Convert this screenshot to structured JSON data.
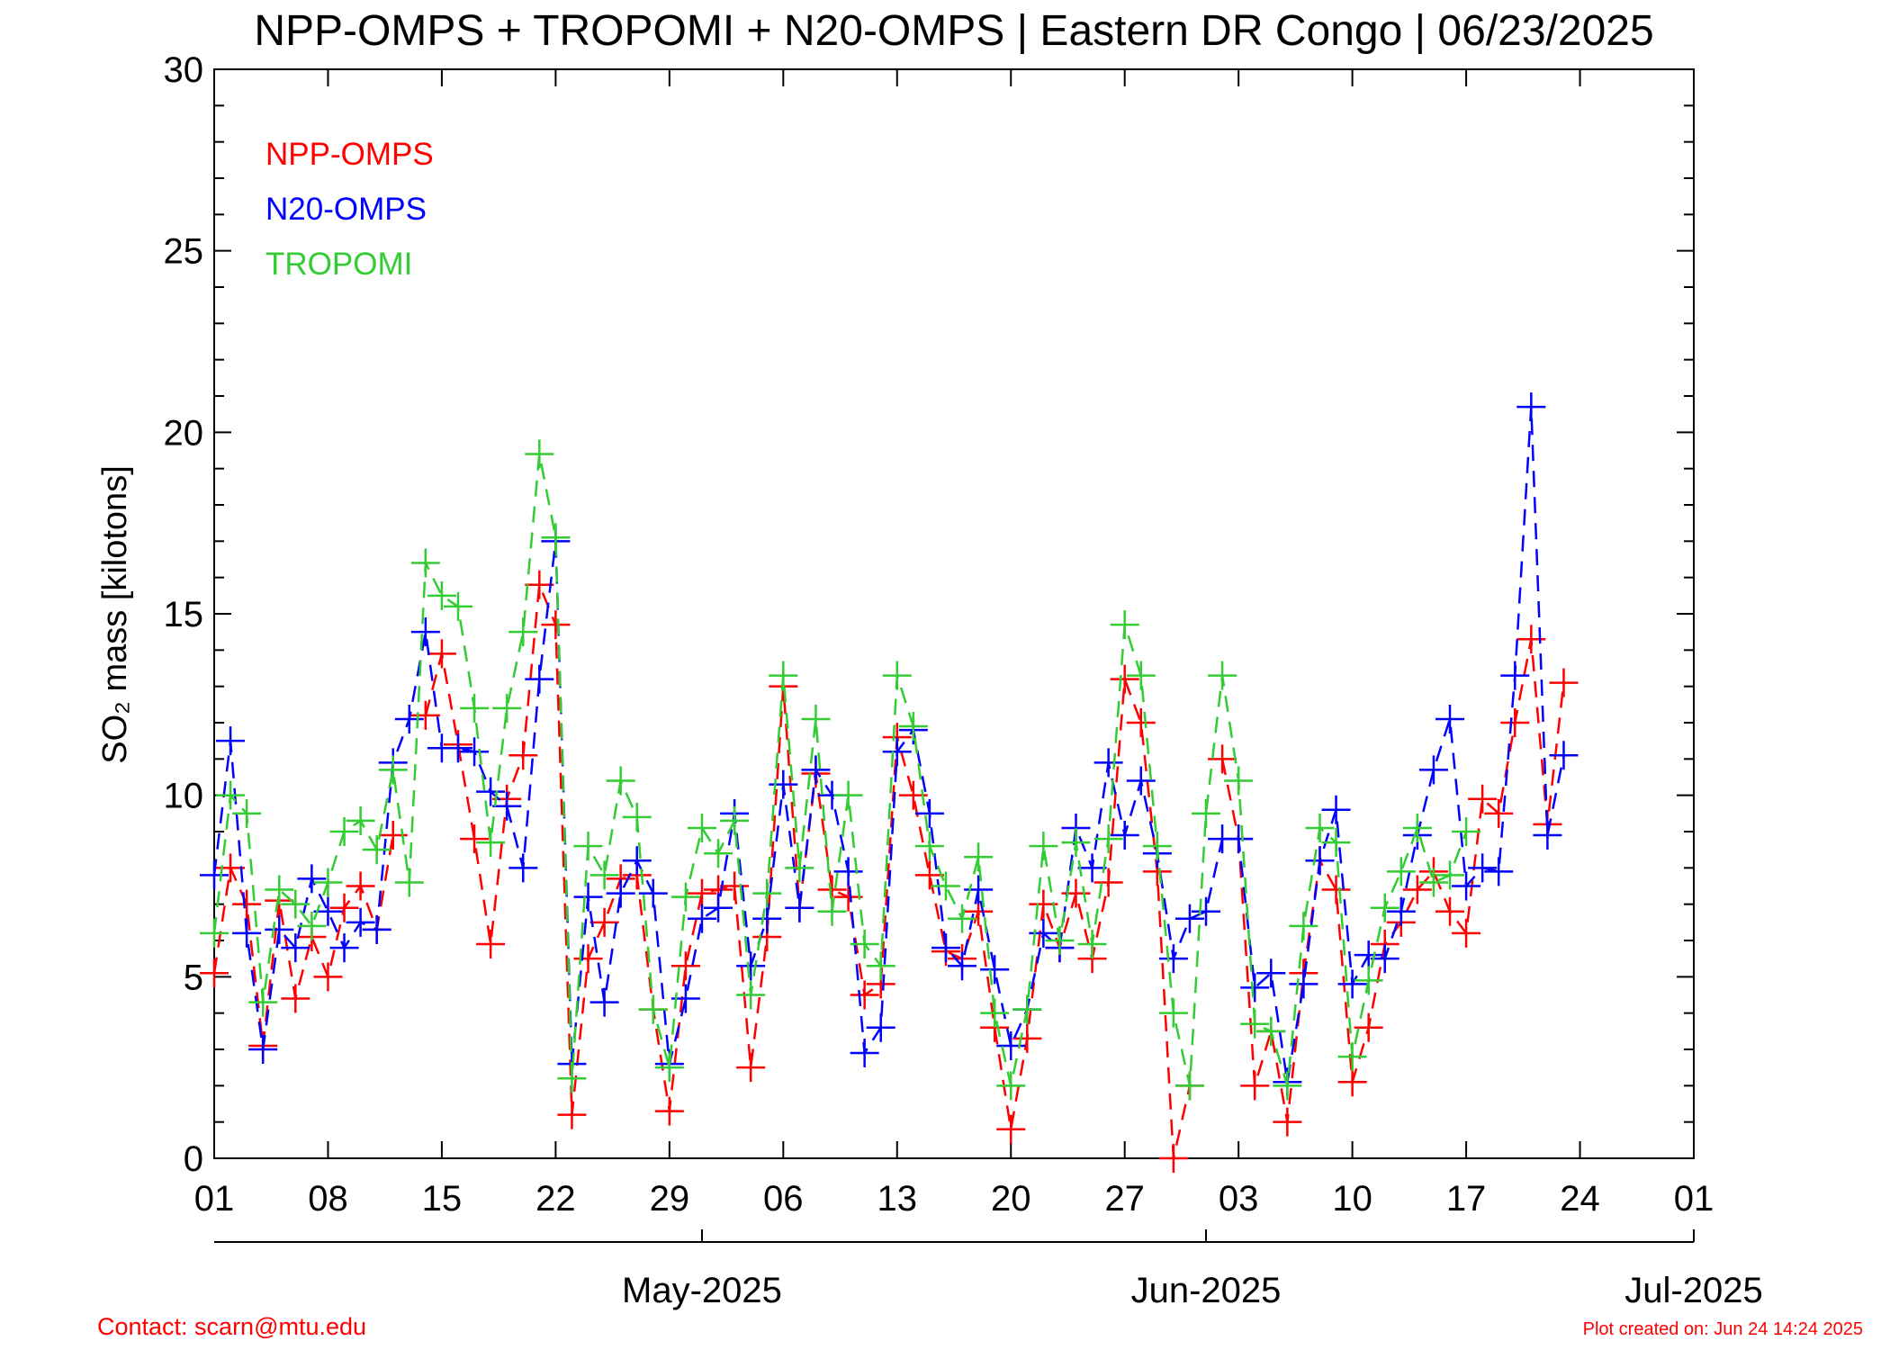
{
  "chart_data": {
    "type": "line",
    "title": "NPP-OMPS + TROPOMI + N20-OMPS | Eastern DR Congo | 06/23/2025",
    "ylabel": "SO₂ mass [kilotons]",
    "footer_left": "Contact: scarn@mtu.edu",
    "footer_right": "Plot created on: Jun 24 14:24 2025",
    "legend": "upper left",
    "marker": "+",
    "line_style": "dashed",
    "x": [
      "2025-04-01",
      "2025-04-02",
      "2025-04-03",
      "2025-04-04",
      "2025-04-05",
      "2025-04-06",
      "2025-04-07",
      "2025-04-08",
      "2025-04-09",
      "2025-04-10",
      "2025-04-11",
      "2025-04-12",
      "2025-04-13",
      "2025-04-14",
      "2025-04-15",
      "2025-04-16",
      "2025-04-17",
      "2025-04-18",
      "2025-04-19",
      "2025-04-20",
      "2025-04-21",
      "2025-04-22",
      "2025-04-23",
      "2025-04-24",
      "2025-04-25",
      "2025-04-26",
      "2025-04-27",
      "2025-04-28",
      "2025-04-29",
      "2025-04-30",
      "2025-05-01",
      "2025-05-02",
      "2025-05-03",
      "2025-05-04",
      "2025-05-05",
      "2025-05-06",
      "2025-05-07",
      "2025-05-08",
      "2025-05-09",
      "2025-05-10",
      "2025-05-11",
      "2025-05-12",
      "2025-05-13",
      "2025-05-14",
      "2025-05-15",
      "2025-05-16",
      "2025-05-17",
      "2025-05-18",
      "2025-05-19",
      "2025-05-20",
      "2025-05-21",
      "2025-05-22",
      "2025-05-23",
      "2025-05-24",
      "2025-05-25",
      "2025-05-26",
      "2025-05-27",
      "2025-05-28",
      "2025-05-29",
      "2025-05-30",
      "2025-05-31",
      "2025-06-01",
      "2025-06-02",
      "2025-06-03",
      "2025-06-04",
      "2025-06-05",
      "2025-06-06",
      "2025-06-07",
      "2025-06-08",
      "2025-06-09",
      "2025-06-10",
      "2025-06-11",
      "2025-06-12",
      "2025-06-13",
      "2025-06-14",
      "2025-06-15",
      "2025-06-16",
      "2025-06-17",
      "2025-06-18",
      "2025-06-19",
      "2025-06-20",
      "2025-06-21",
      "2025-06-22",
      "2025-06-23"
    ],
    "series": [
      {
        "name": "NPP-OMPS",
        "color": "#ff0000",
        "values": [
          5.1,
          8.0,
          7.0,
          3.1,
          7.1,
          4.4,
          6.1,
          5.0,
          6.9,
          7.5,
          6.3,
          8.9,
          null,
          12.2,
          13.9,
          11.4,
          8.8,
          5.9,
          9.9,
          11.1,
          15.8,
          14.7,
          1.2,
          5.5,
          6.5,
          7.7,
          7.8,
          4.1,
          1.3,
          5.3,
          7.3,
          7.4,
          7.5,
          2.5,
          6.1,
          13.0,
          6.9,
          10.6,
          7.4,
          7.2,
          4.5,
          4.8,
          11.6,
          10.0,
          7.8,
          5.7,
          5.5,
          6.8,
          3.6,
          0.8,
          3.3,
          7.0,
          5.8,
          7.3,
          5.5,
          7.6,
          13.2,
          12.0,
          7.9,
          0.0,
          2.0,
          null,
          11.0,
          8.8,
          2.0,
          3.5,
          1.0,
          5.1,
          8.2,
          7.4,
          2.1,
          3.6,
          5.9,
          6.5,
          7.4,
          7.9,
          6.8,
          6.2,
          9.9,
          9.5,
          12.0,
          14.3,
          9.2,
          13.1
        ]
      },
      {
        "name": "N20-OMPS",
        "color": "#0000ff",
        "values": [
          7.8,
          11.5,
          6.2,
          3.0,
          6.3,
          5.8,
          7.7,
          6.8,
          5.8,
          6.5,
          6.3,
          10.9,
          12.1,
          14.5,
          11.3,
          11.3,
          11.2,
          10.1,
          9.7,
          8.0,
          13.2,
          17.0,
          2.6,
          7.2,
          4.3,
          7.3,
          8.2,
          7.3,
          2.6,
          4.4,
          6.6,
          6.9,
          9.5,
          5.3,
          6.6,
          10.3,
          6.9,
          10.7,
          10.0,
          7.9,
          2.9,
          3.6,
          11.2,
          11.8,
          9.5,
          5.8,
          5.3,
          7.4,
          5.2,
          3.1,
          4.1,
          6.2,
          5.8,
          9.1,
          8.0,
          10.9,
          8.9,
          10.4,
          8.4,
          5.5,
          6.6,
          6.8,
          8.8,
          8.8,
          4.7,
          5.1,
          2.1,
          4.8,
          8.2,
          9.6,
          4.8,
          5.6,
          5.5,
          6.8,
          8.9,
          10.7,
          12.1,
          7.5,
          8.0,
          7.9,
          13.3,
          20.7,
          8.9,
          11.1
        ]
      },
      {
        "name": "TROPOMI",
        "color": "#33cc33",
        "values": [
          6.2,
          10.0,
          9.5,
          4.3,
          7.4,
          7.0,
          6.4,
          7.6,
          9.0,
          9.3,
          8.5,
          10.7,
          7.6,
          16.4,
          15.5,
          15.2,
          12.4,
          8.7,
          12.4,
          14.5,
          19.4,
          17.1,
          2.2,
          8.6,
          7.8,
          10.4,
          9.4,
          4.1,
          2.5,
          7.2,
          9.1,
          8.4,
          9.3,
          4.5,
          7.3,
          13.3,
          8.0,
          12.1,
          6.8,
          10.0,
          5.9,
          5.3,
          13.3,
          11.9,
          8.6,
          7.5,
          6.6,
          8.3,
          4.0,
          2.0,
          4.1,
          8.6,
          6.0,
          8.7,
          5.9,
          8.8,
          14.7,
          13.3,
          8.6,
          4.0,
          2.0,
          9.5,
          13.3,
          10.4,
          3.7,
          3.5,
          2.0,
          6.4,
          9.1,
          8.7,
          2.8,
          4.9,
          6.9,
          7.9,
          9.1,
          7.6,
          7.8,
          9.0,
          null,
          null,
          null,
          null,
          null,
          null
        ]
      }
    ],
    "xlim": [
      "2025-04-01",
      "2025-07-01"
    ],
    "xticks": [
      {
        "value": "2025-04-01",
        "label": "01"
      },
      {
        "value": "2025-04-08",
        "label": "08"
      },
      {
        "value": "2025-04-15",
        "label": "15"
      },
      {
        "value": "2025-04-22",
        "label": "22"
      },
      {
        "value": "2025-04-29",
        "label": "29"
      },
      {
        "value": "2025-05-06",
        "label": "06"
      },
      {
        "value": "2025-05-13",
        "label": "13"
      },
      {
        "value": "2025-05-20",
        "label": "20"
      },
      {
        "value": "2025-05-27",
        "label": "27"
      },
      {
        "value": "2025-06-03",
        "label": "03"
      },
      {
        "value": "2025-06-10",
        "label": "10"
      },
      {
        "value": "2025-06-17",
        "label": "17"
      },
      {
        "value": "2025-06-24",
        "label": "24"
      },
      {
        "value": "2025-07-01",
        "label": "01"
      }
    ],
    "month_ticks": [
      {
        "value": "2025-05-01",
        "label": "May-2025"
      },
      {
        "value": "2025-06-01",
        "label": "Jun-2025"
      },
      {
        "value": "2025-07-01",
        "label": "Jul-2025"
      }
    ],
    "ylim": [
      0,
      30
    ],
    "yticks": [
      0,
      5,
      10,
      15,
      20,
      25,
      30
    ],
    "yminorticks": [
      1,
      2,
      3,
      4,
      6,
      7,
      8,
      9,
      11,
      12,
      13,
      14,
      16,
      17,
      18,
      19,
      21,
      22,
      23,
      24,
      26,
      27,
      28,
      29
    ]
  }
}
